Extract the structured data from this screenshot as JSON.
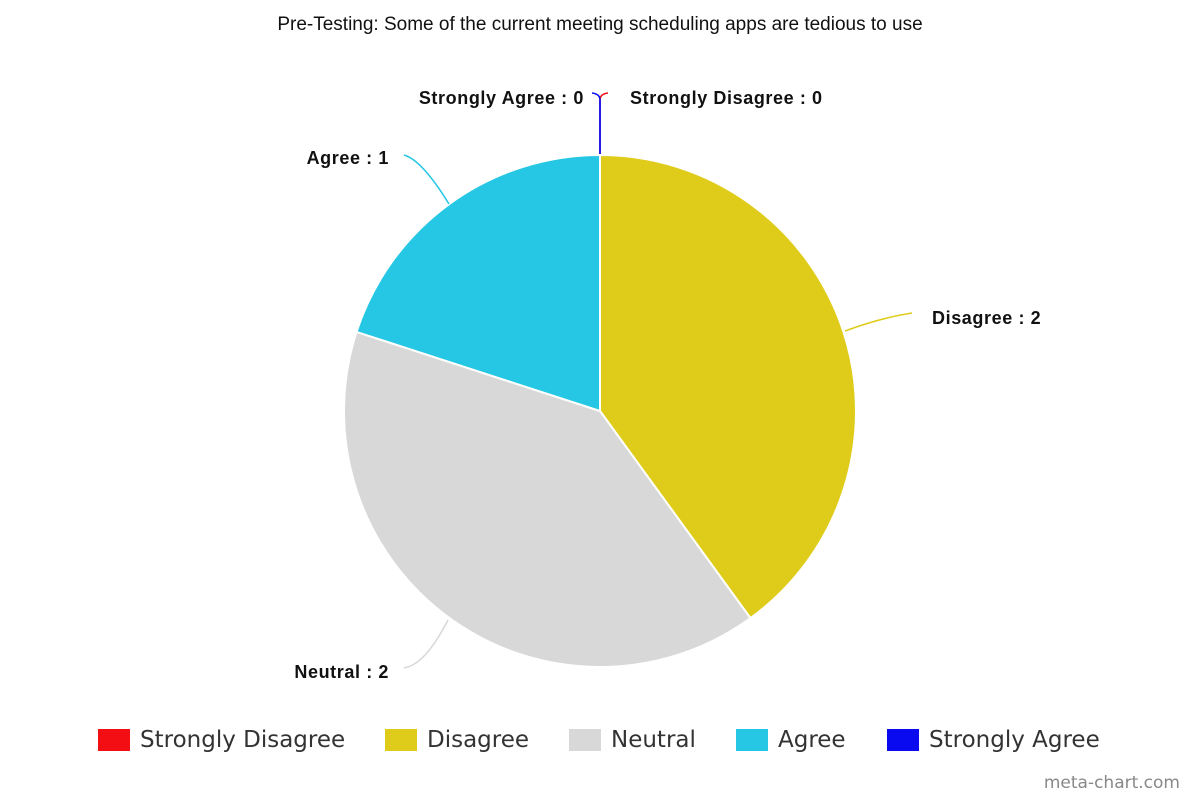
{
  "chart_data": {
    "type": "pie",
    "title": "Pre-Testing: Some of the current meeting scheduling apps are tedious to use",
    "slices": [
      {
        "label": "Strongly Disagree",
        "value": 0,
        "color": "#f20e12",
        "data_label": "Strongly Disagree : 0"
      },
      {
        "label": "Disagree",
        "value": 2,
        "color": "#dfcc1a",
        "data_label": "Disagree : 2"
      },
      {
        "label": "Neutral",
        "value": 2,
        "color": "#d8d8d8",
        "data_label": "Neutral : 2"
      },
      {
        "label": "Agree",
        "value": 1,
        "color": "#26c7e4",
        "data_label": "Agree : 1"
      },
      {
        "label": "Strongly Agree",
        "value": 0,
        "color": "#0a0af0",
        "data_label": "Strongly Agree : 0"
      }
    ],
    "legend_position": "bottom"
  },
  "legend": {
    "items": [
      {
        "label": "Strongly Disagree",
        "color": "#f20e12"
      },
      {
        "label": "Disagree",
        "color": "#dfcc1a"
      },
      {
        "label": "Neutral",
        "color": "#d8d8d8"
      },
      {
        "label": "Agree",
        "color": "#26c7e4"
      },
      {
        "label": "Strongly Agree",
        "color": "#0a0af0"
      }
    ]
  },
  "credit": "meta-chart.com"
}
